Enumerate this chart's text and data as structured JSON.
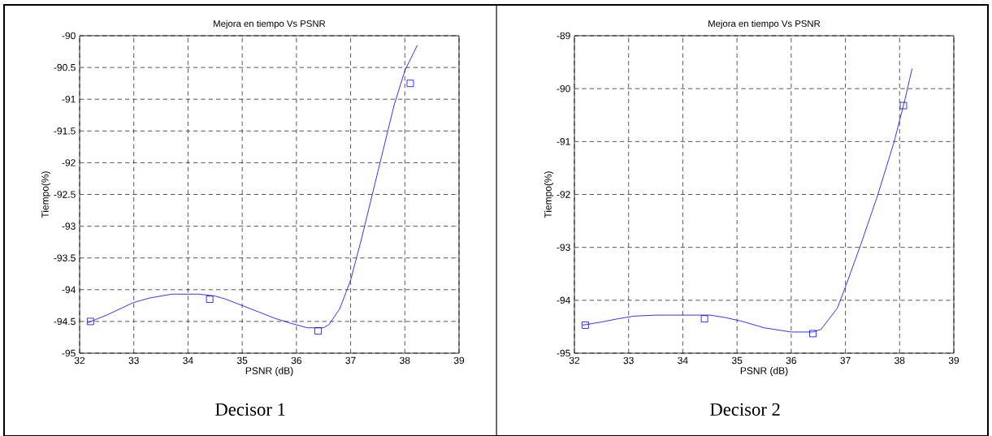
{
  "chart_data": [
    {
      "type": "line",
      "title": "Mejora en tiempo Vs PSNR",
      "xlabel": "PSNR (dB)",
      "ylabel": "Tiempo(%)",
      "annotations": [
        "Decisor 1"
      ],
      "xlim": [
        32,
        39
      ],
      "ylim": [
        -95,
        -90
      ],
      "xticks": [
        32,
        33,
        34,
        35,
        36,
        37,
        38,
        39
      ],
      "yticks": [
        -95,
        -94.5,
        -94,
        -93.5,
        -93,
        -92.5,
        -92,
        -91.5,
        -91,
        -90.5,
        -90
      ],
      "grid": true,
      "series": [
        {
          "type": "line",
          "color": "#0000ff",
          "marker": "none",
          "line_style": "solid",
          "x": [
            32.15,
            32.5,
            33,
            33.3,
            33.7,
            34.2,
            34.5,
            34.7,
            35,
            35.3,
            35.6,
            35.9,
            36.2,
            36.5,
            36.6,
            36.8,
            37,
            37.2,
            37.4,
            37.6,
            37.8,
            38,
            38.23
          ],
          "values": [
            -94.52,
            -94.4,
            -94.2,
            -94.13,
            -94.07,
            -94.07,
            -94.1,
            -94.15,
            -94.25,
            -94.35,
            -94.45,
            -94.53,
            -94.6,
            -94.6,
            -94.55,
            -94.3,
            -93.85,
            -93.2,
            -92.5,
            -91.8,
            -91.1,
            -90.55,
            -90.15
          ]
        },
        {
          "type": "scatter",
          "color": "#0000ff",
          "marker": "square",
          "x": [
            32.2,
            34.4,
            36.4,
            38.1
          ],
          "values": [
            -94.5,
            -94.15,
            -94.65,
            -90.75
          ]
        }
      ]
    },
    {
      "type": "line",
      "title": "Mejora en tiempo Vs PSNR",
      "xlabel": "PSNR (dB)",
      "ylabel": "Tiempo(%)",
      "annotations": [
        "Decisor 2"
      ],
      "xlim": [
        32,
        39
      ],
      "ylim": [
        -95,
        -89
      ],
      "xticks": [
        32,
        33,
        34,
        35,
        36,
        37,
        38,
        39
      ],
      "yticks": [
        -95,
        -94,
        -93,
        -92,
        -91,
        -90,
        -89
      ],
      "grid": true,
      "series": [
        {
          "type": "line",
          "color": "#0000ff",
          "marker": "none",
          "line_style": "solid",
          "x": [
            32.15,
            32.5,
            32.8,
            33.1,
            33.5,
            34.5,
            34.8,
            35.1,
            35.5,
            36,
            36.4,
            36.55,
            36.85,
            37,
            37.3,
            37.6,
            37.9,
            38.1,
            38.23
          ],
          "values": [
            -94.47,
            -94.41,
            -94.35,
            -94.3,
            -94.28,
            -94.28,
            -94.33,
            -94.4,
            -94.52,
            -94.6,
            -94.6,
            -94.55,
            -94.15,
            -93.75,
            -92.9,
            -92,
            -91,
            -90.2,
            -89.62
          ]
        },
        {
          "type": "scatter",
          "color": "#0000ff",
          "marker": "square",
          "x": [
            32.2,
            34.4,
            36.4,
            38.07
          ],
          "values": [
            -94.47,
            -94.35,
            -94.63,
            -90.32
          ]
        }
      ]
    }
  ]
}
